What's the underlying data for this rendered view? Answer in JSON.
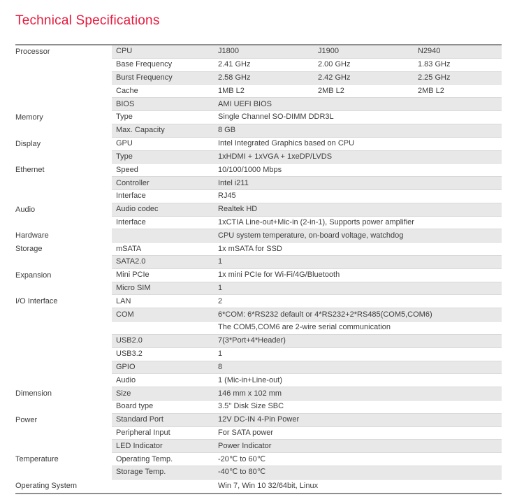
{
  "page_title": "Technical Specifications",
  "colors": {
    "accent": "#e8193c",
    "row_shaded": "#e8e8e8",
    "row_border": "#d9d9d9",
    "table_border": "#8f8f8f",
    "text": "#3d3d3d"
  },
  "table": {
    "rows": [
      {
        "category": "Processor",
        "label": "CPU",
        "values": [
          "J1800",
          "J1900",
          "N2940"
        ],
        "shaded": true
      },
      {
        "category": "",
        "label": "Base Frequency",
        "values": [
          "2.41 GHz",
          "2.00 GHz",
          "1.83 GHz"
        ],
        "shaded": false
      },
      {
        "category": "",
        "label": "Burst Frequency",
        "values": [
          "2.58 GHz",
          "2.42 GHz",
          "2.25 GHz"
        ],
        "shaded": true
      },
      {
        "category": "",
        "label": "Cache",
        "values": [
          "1MB L2",
          "2MB L2",
          "2MB L2"
        ],
        "shaded": false
      },
      {
        "category": "",
        "label": "BIOS",
        "values": [
          "AMI UEFI BIOS"
        ],
        "shaded": true
      },
      {
        "category": "Memory",
        "label": "Type",
        "values": [
          "Single Channel SO-DIMM DDR3L"
        ],
        "shaded": false
      },
      {
        "category": "",
        "label": "Max. Capacity",
        "values": [
          "8 GB"
        ],
        "shaded": true
      },
      {
        "category": "Display",
        "label": "GPU",
        "values": [
          "Intel Integrated Graphics based on CPU"
        ],
        "shaded": false
      },
      {
        "category": "",
        "label": "Type",
        "values": [
          "1xHDMI + 1xVGA + 1xeDP/LVDS"
        ],
        "shaded": true
      },
      {
        "category": "Ethernet",
        "label": "Speed",
        "values": [
          "10/100/1000 Mbps"
        ],
        "shaded": false
      },
      {
        "category": "",
        "label": "Controller",
        "values": [
          "Intel i211"
        ],
        "shaded": true
      },
      {
        "category": "",
        "label": "Interface",
        "values": [
          "RJ45"
        ],
        "shaded": false
      },
      {
        "category": "Audio",
        "label": "Audio codec",
        "values": [
          "Realtek HD"
        ],
        "shaded": true
      },
      {
        "category": "",
        "label": "Interface",
        "values": [
          "1xCTIA Line-out+Mic-in (2-in-1), Supports power amplifier"
        ],
        "shaded": false
      },
      {
        "category": "Hardware",
        "label": "",
        "values": [
          "CPU system temperature, on-board voltage, watchdog"
        ],
        "shaded": true
      },
      {
        "category": "Storage",
        "label": "mSATA",
        "values": [
          "1x mSATA for SSD"
        ],
        "shaded": false
      },
      {
        "category": "",
        "label": "SATA2.0",
        "values": [
          "1"
        ],
        "shaded": true
      },
      {
        "category": "Expansion",
        "label": "Mini PCIe",
        "values": [
          "1x mini PCIe for Wi-Fi/4G/Bluetooth"
        ],
        "shaded": false
      },
      {
        "category": "",
        "label": "Micro SIM",
        "values": [
          "1"
        ],
        "shaded": true
      },
      {
        "category": "I/O Interface",
        "label": "LAN",
        "values": [
          "2"
        ],
        "shaded": false
      },
      {
        "category": "",
        "label": "COM",
        "values": [
          "6*COM: 6*RS232 default or 4*RS232+2*RS485(COM5,COM6)"
        ],
        "shaded": true
      },
      {
        "category": "",
        "label": "",
        "values": [
          "The COM5,COM6 are 2-wire serial communication"
        ],
        "shaded": false
      },
      {
        "category": "",
        "label": "USB2.0",
        "values": [
          "7(3*Port+4*Header)"
        ],
        "shaded": true
      },
      {
        "category": "",
        "label": "USB3.2",
        "values": [
          "1"
        ],
        "shaded": false
      },
      {
        "category": "",
        "label": "GPIO",
        "values": [
          "8"
        ],
        "shaded": true
      },
      {
        "category": "",
        "label": "Audio",
        "values": [
          "1 (Mic-in+Line-out)"
        ],
        "shaded": false
      },
      {
        "category": "Dimension",
        "label": "Size",
        "values": [
          "146 mm x 102 mm"
        ],
        "shaded": true
      },
      {
        "category": "",
        "label": "Board type",
        "values": [
          "3.5'' Disk Size SBC"
        ],
        "shaded": false
      },
      {
        "category": "Power",
        "label": "Standard Port",
        "values": [
          "12V DC-IN 4-Pin Power"
        ],
        "shaded": true
      },
      {
        "category": "",
        "label": "Peripheral Input",
        "values": [
          "For SATA power"
        ],
        "shaded": false
      },
      {
        "category": "",
        "label": "LED Indicator",
        "values": [
          "Power Indicator"
        ],
        "shaded": true
      },
      {
        "category": "Temperature",
        "label": "Operating Temp.",
        "values": [
          "-20℃ to 60℃"
        ],
        "shaded": false
      },
      {
        "category": "",
        "label": "Storage Temp.",
        "values": [
          "-40℃ to 80℃"
        ],
        "shaded": true
      },
      {
        "category": "Operating System",
        "label": "",
        "values": [
          "Win 7, Win 10 32/64bit, Linux"
        ],
        "shaded": false
      }
    ]
  }
}
